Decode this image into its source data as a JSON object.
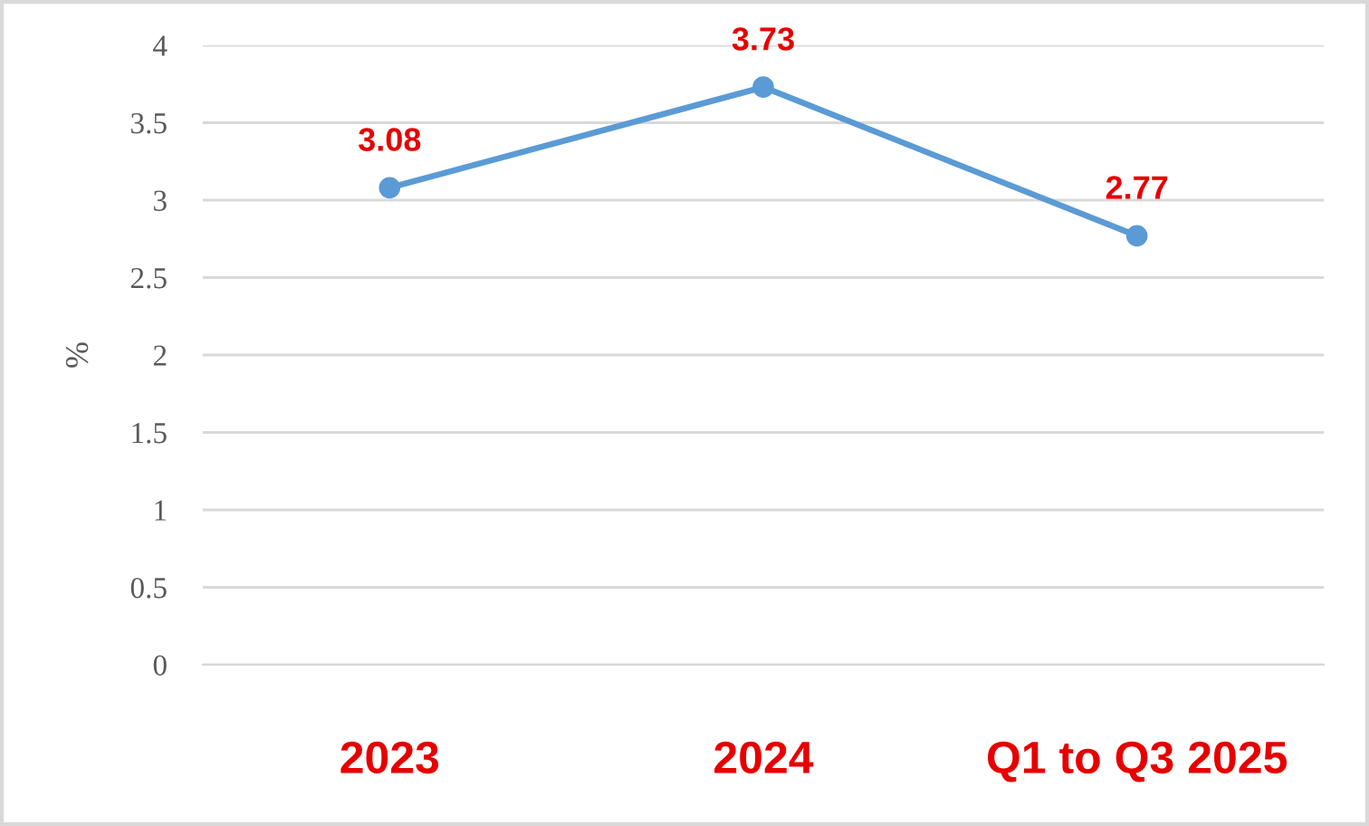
{
  "chart_data": {
    "type": "line",
    "ylabel": "%",
    "categories": [
      "2023",
      "2024",
      "Q1 to Q3 2025"
    ],
    "series": [
      {
        "color": "#5b9bd5",
        "values": [
          3.08,
          3.73,
          2.77
        ]
      }
    ],
    "ylim": [
      0,
      4
    ],
    "yticks": [
      0,
      0.5,
      1,
      1.5,
      2,
      2.5,
      3,
      3.5,
      4
    ],
    "grid": "y",
    "marker": "circle",
    "line_style": "solid",
    "data_labels": true
  }
}
